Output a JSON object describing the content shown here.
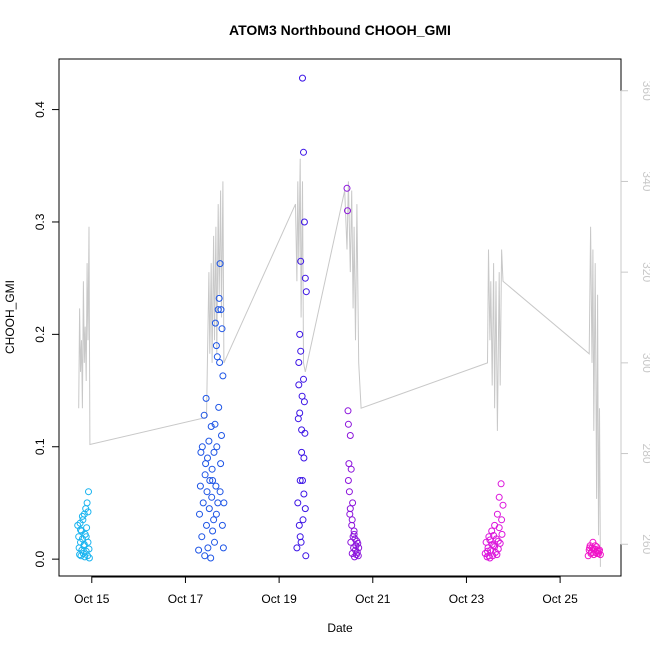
{
  "chart_data": {
    "type": "scatter",
    "title": "ATOM3 Northbound CHOOH_GMI",
    "xlabel": "Date",
    "ylabel": "CHOOH_GMI",
    "x_ticks": [
      "Oct 15",
      "Oct 17",
      "Oct 19",
      "Oct 21",
      "Oct 23",
      "Oct 25"
    ],
    "x_tick_days": [
      15,
      17,
      19,
      21,
      23,
      25
    ],
    "xlim_days": [
      14.3,
      26.3
    ],
    "ylim": [
      -0.015,
      0.445
    ],
    "y_ticks": [
      "0.0",
      "0.1",
      "0.2",
      "0.3",
      "0.4"
    ],
    "y_tick_values": [
      0.0,
      0.1,
      0.2,
      0.3,
      0.4
    ],
    "y2_ticks": [
      "260",
      "280",
      "300",
      "320",
      "340",
      "360"
    ],
    "y2_tick_values": [
      260,
      280,
      300,
      320,
      340,
      360
    ],
    "y2lim": [
      253,
      367
    ],
    "colors": {
      "line": "#c8c8c8",
      "right_axis": "#c8c8c8",
      "cluster_colors": [
        "#19b4f0",
        "#1e55e6",
        "#3c14e6",
        "#8c14dc",
        "#dc14dc",
        "#f014c8"
      ]
    },
    "secondary_series": {
      "points": [
        [
          14.72,
          290
        ],
        [
          14.74,
          312
        ],
        [
          14.76,
          298
        ],
        [
          14.78,
          305
        ],
        [
          14.8,
          290
        ],
        [
          14.82,
          318
        ],
        [
          14.84,
          300
        ],
        [
          14.86,
          308
        ],
        [
          14.88,
          296
        ],
        [
          14.9,
          322
        ],
        [
          14.92,
          305
        ],
        [
          14.94,
          330
        ],
        [
          14.96,
          282
        ],
        [
          17.45,
          288
        ],
        [
          17.5,
          320
        ],
        [
          17.52,
          302
        ],
        [
          17.55,
          322
        ],
        [
          17.57,
          300
        ],
        [
          17.6,
          328
        ],
        [
          17.62,
          305
        ],
        [
          17.65,
          330
        ],
        [
          17.67,
          302
        ],
        [
          17.7,
          335
        ],
        [
          17.72,
          315
        ],
        [
          17.75,
          338
        ],
        [
          17.77,
          310
        ],
        [
          17.8,
          340
        ],
        [
          17.82,
          300
        ],
        [
          19.35,
          335
        ],
        [
          19.38,
          318
        ],
        [
          19.4,
          340
        ],
        [
          19.42,
          322
        ],
        [
          19.45,
          345
        ],
        [
          19.47,
          310
        ],
        [
          19.5,
          340
        ],
        [
          19.52,
          300
        ],
        [
          19.56,
          298
        ],
        [
          20.4,
          338
        ],
        [
          20.45,
          325
        ],
        [
          20.48,
          340
        ],
        [
          20.52,
          320
        ],
        [
          20.55,
          338
        ],
        [
          20.58,
          312
        ],
        [
          20.6,
          330
        ],
        [
          20.63,
          305
        ],
        [
          20.66,
          335
        ],
        [
          20.7,
          300
        ],
        [
          20.75,
          290
        ],
        [
          23.45,
          300
        ],
        [
          23.47,
          325
        ],
        [
          23.5,
          305
        ],
        [
          23.52,
          318
        ],
        [
          23.55,
          295
        ],
        [
          23.58,
          322
        ],
        [
          23.6,
          290
        ],
        [
          23.63,
          318
        ],
        [
          23.66,
          285
        ],
        [
          23.7,
          320
        ],
        [
          23.72,
          295
        ],
        [
          23.75,
          325
        ],
        [
          23.78,
          318
        ],
        [
          25.62,
          302
        ],
        [
          25.65,
          330
        ],
        [
          25.68,
          300
        ],
        [
          25.7,
          325
        ],
        [
          25.72,
          285
        ],
        [
          25.75,
          322
        ],
        [
          25.78,
          270
        ],
        [
          25.8,
          315
        ],
        [
          25.82,
          262
        ],
        [
          25.84,
          290
        ],
        [
          25.86,
          255
        ]
      ]
    },
    "series": [
      {
        "color_index": 0,
        "points": [
          [
            14.7,
            0.03
          ],
          [
            14.72,
            0.02
          ],
          [
            14.73,
            0.01
          ],
          [
            14.74,
            0.004
          ],
          [
            14.75,
            0.032
          ],
          [
            14.76,
            0.015
          ],
          [
            14.77,
            0.003
          ],
          [
            14.78,
            0.025
          ],
          [
            14.79,
            0.008
          ],
          [
            14.8,
            0.018
          ],
          [
            14.81,
            0.035
          ],
          [
            14.82,
            0.005
          ],
          [
            14.83,
            0.012
          ],
          [
            14.84,
            0.04
          ],
          [
            14.85,
            0.002
          ],
          [
            14.86,
            0.022
          ],
          [
            14.87,
            0.045
          ],
          [
            14.88,
            0.007
          ],
          [
            14.89,
            0.028
          ],
          [
            14.9,
            0.05
          ],
          [
            14.91,
            0.003
          ],
          [
            14.92,
            0.015
          ],
          [
            14.93,
            0.06
          ],
          [
            14.94,
            0.009
          ],
          [
            14.95,
            0.001
          ],
          [
            14.76,
            0.026
          ],
          [
            14.8,
            0.038
          ],
          [
            14.84,
            0.013
          ],
          [
            14.88,
            0.02
          ],
          [
            14.92,
            0.042
          ]
        ]
      },
      {
        "color_index": 1,
        "points": [
          [
            17.28,
            0.008
          ],
          [
            17.3,
            0.04
          ],
          [
            17.32,
            0.065
          ],
          [
            17.33,
            0.095
          ],
          [
            17.35,
            0.02
          ],
          [
            17.36,
            0.1
          ],
          [
            17.38,
            0.05
          ],
          [
            17.4,
            0.128
          ],
          [
            17.41,
            0.003
          ],
          [
            17.42,
            0.075
          ],
          [
            17.44,
            0.143
          ],
          [
            17.45,
            0.03
          ],
          [
            17.46,
            0.06
          ],
          [
            17.47,
            0.09
          ],
          [
            17.48,
            0.01
          ],
          [
            17.5,
            0.105
          ],
          [
            17.51,
            0.045
          ],
          [
            17.52,
            0.07
          ],
          [
            17.54,
            0.001
          ],
          [
            17.55,
            0.118
          ],
          [
            17.56,
            0.055
          ],
          [
            17.57,
            0.08
          ],
          [
            17.58,
            0.025
          ],
          [
            17.6,
            0.035
          ],
          [
            17.61,
            0.095
          ],
          [
            17.62,
            0.015
          ],
          [
            17.63,
            0.12
          ],
          [
            17.64,
            0.21
          ],
          [
            17.65,
            0.065
          ],
          [
            17.66,
            0.19
          ],
          [
            17.67,
            0.1
          ],
          [
            17.68,
            0.18
          ],
          [
            17.69,
            0.05
          ],
          [
            17.7,
            0.222
          ],
          [
            17.71,
            0.135
          ],
          [
            17.72,
            0.232
          ],
          [
            17.73,
            0.175
          ],
          [
            17.74,
            0.263
          ],
          [
            17.75,
            0.085
          ],
          [
            17.76,
            0.222
          ],
          [
            17.77,
            0.11
          ],
          [
            17.78,
            0.205
          ],
          [
            17.79,
            0.03
          ],
          [
            17.8,
            0.163
          ],
          [
            17.81,
            0.01
          ],
          [
            17.82,
            0.05
          ],
          [
            17.43,
            0.085
          ],
          [
            17.58,
            0.07
          ],
          [
            17.66,
            0.04
          ],
          [
            17.74,
            0.06
          ]
        ]
      },
      {
        "color_index": 2,
        "points": [
          [
            19.38,
            0.01
          ],
          [
            19.4,
            0.05
          ],
          [
            19.41,
            0.125
          ],
          [
            19.42,
            0.175
          ],
          [
            19.43,
            0.03
          ],
          [
            19.44,
            0.2
          ],
          [
            19.45,
            0.07
          ],
          [
            19.46,
            0.265
          ],
          [
            19.47,
            0.015
          ],
          [
            19.48,
            0.095
          ],
          [
            19.49,
            0.145
          ],
          [
            19.5,
            0.428
          ],
          [
            19.51,
            0.035
          ],
          [
            19.52,
            0.362
          ],
          [
            19.53,
            0.058
          ],
          [
            19.54,
            0.3
          ],
          [
            19.55,
            0.112
          ],
          [
            19.56,
            0.25
          ],
          [
            19.57,
            0.003
          ],
          [
            19.58,
            0.238
          ],
          [
            19.42,
            0.155
          ],
          [
            19.44,
            0.13
          ],
          [
            19.46,
            0.185
          ],
          [
            19.48,
            0.115
          ],
          [
            19.5,
            0.07
          ],
          [
            19.52,
            0.16
          ],
          [
            19.54,
            0.14
          ],
          [
            19.56,
            0.045
          ],
          [
            19.45,
            0.02
          ],
          [
            19.53,
            0.09
          ]
        ]
      },
      {
        "color_index": 3,
        "points": [
          [
            20.45,
            0.33
          ],
          [
            20.46,
            0.31
          ],
          [
            20.47,
            0.132
          ],
          [
            20.48,
            0.12
          ],
          [
            20.49,
            0.085
          ],
          [
            20.5,
            0.06
          ],
          [
            20.51,
            0.04
          ],
          [
            20.52,
            0.11
          ],
          [
            20.53,
            0.015
          ],
          [
            20.54,
            0.08
          ],
          [
            20.55,
            0.03
          ],
          [
            20.56,
            0.005
          ],
          [
            20.57,
            0.05
          ],
          [
            20.58,
            0.02
          ],
          [
            20.59,
            0.01
          ],
          [
            20.6,
            0.025
          ],
          [
            20.61,
            0.002
          ],
          [
            20.62,
            0.018
          ],
          [
            20.63,
            0.008
          ],
          [
            20.64,
            0.012
          ],
          [
            20.65,
            0.004
          ],
          [
            20.66,
            0.016
          ],
          [
            20.67,
            0.006
          ],
          [
            20.68,
            0.014
          ],
          [
            20.69,
            0.003
          ],
          [
            20.7,
            0.01
          ],
          [
            20.48,
            0.07
          ],
          [
            20.52,
            0.045
          ],
          [
            20.56,
            0.035
          ],
          [
            20.6,
            0.022
          ]
        ]
      },
      {
        "color_index": 4,
        "points": [
          [
            23.4,
            0.005
          ],
          [
            23.42,
            0.015
          ],
          [
            23.44,
            0.002
          ],
          [
            23.46,
            0.01
          ],
          [
            23.48,
            0.02
          ],
          [
            23.5,
            0.001
          ],
          [
            23.52,
            0.008
          ],
          [
            23.54,
            0.025
          ],
          [
            23.56,
            0.003
          ],
          [
            23.58,
            0.012
          ],
          [
            23.6,
            0.03
          ],
          [
            23.62,
            0.006
          ],
          [
            23.64,
            0.018
          ],
          [
            23.66,
            0.04
          ],
          [
            23.68,
            0.009
          ],
          [
            23.7,
            0.055
          ],
          [
            23.72,
            0.014
          ],
          [
            23.74,
            0.067
          ],
          [
            23.76,
            0.022
          ],
          [
            23.78,
            0.048
          ],
          [
            23.45,
            0.007
          ],
          [
            23.55,
            0.013
          ],
          [
            23.65,
            0.004
          ],
          [
            23.75,
            0.035
          ],
          [
            23.5,
            0.017
          ],
          [
            23.6,
            0.011
          ],
          [
            23.7,
            0.028
          ],
          [
            23.48,
            0.003
          ],
          [
            23.58,
            0.021
          ],
          [
            23.68,
            0.016
          ]
        ]
      },
      {
        "color_index": 5,
        "points": [
          [
            25.6,
            0.003
          ],
          [
            25.62,
            0.008
          ],
          [
            25.64,
            0.012
          ],
          [
            25.66,
            0.005
          ],
          [
            25.68,
            0.01
          ],
          [
            25.7,
            0.015
          ],
          [
            25.72,
            0.004
          ],
          [
            25.74,
            0.009
          ],
          [
            25.76,
            0.006
          ],
          [
            25.78,
            0.011
          ],
          [
            25.8,
            0.007
          ],
          [
            25.82,
            0.005
          ],
          [
            25.84,
            0.008
          ],
          [
            25.86,
            0.004
          ],
          [
            25.63,
            0.01
          ],
          [
            25.67,
            0.006
          ],
          [
            25.71,
            0.009
          ],
          [
            25.75,
            0.012
          ],
          [
            25.79,
            0.005
          ],
          [
            25.83,
            0.007
          ]
        ]
      }
    ]
  }
}
